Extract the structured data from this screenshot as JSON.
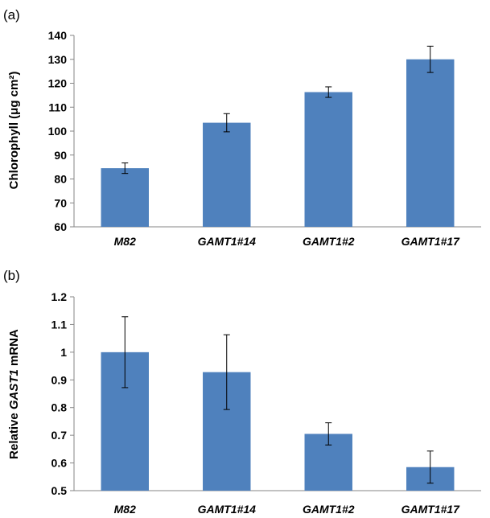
{
  "chart_data": [
    {
      "type": "bar",
      "panel_label": "(a)",
      "categories": [
        "M82",
        "GAMT1#14",
        "GAMT1#2",
        "GAMT1#17"
      ],
      "values": [
        84.5,
        103.5,
        116.3,
        130.0
      ],
      "errors": [
        2.2,
        3.8,
        2.2,
        5.5
      ],
      "ylabel": "Chlorophyll (μg cm²)",
      "ylim": [
        60,
        140
      ],
      "yticks": [
        60,
        70,
        80,
        90,
        100,
        110,
        120,
        130,
        140
      ],
      "grid": false,
      "bar_color": "#4f81bd"
    },
    {
      "type": "bar",
      "panel_label": "(b)",
      "categories": [
        "M82",
        "GAMT1#14",
        "GAMT1#2",
        "GAMT1#17"
      ],
      "values": [
        1.0,
        0.928,
        0.705,
        0.585
      ],
      "errors": [
        0.128,
        0.135,
        0.04,
        0.058
      ],
      "ylabel_parts": [
        "Relative ",
        "GAST1",
        " mRNA"
      ],
      "ylim": [
        0.5,
        1.2
      ],
      "yticks": [
        "0.5",
        "0.6",
        "0.7",
        "0.8",
        "0.9",
        "1",
        "1.1",
        "1.2"
      ],
      "grid": false,
      "bar_color": "#4f81bd"
    }
  ]
}
